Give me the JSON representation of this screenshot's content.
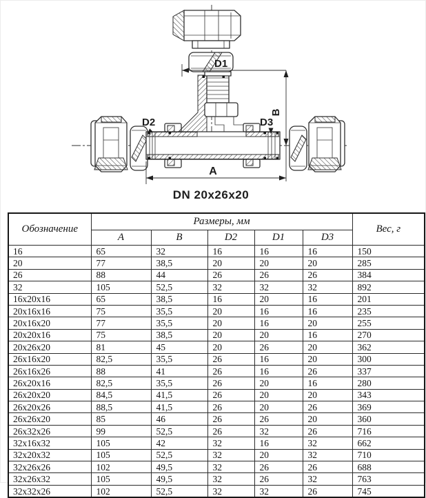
{
  "drawing": {
    "caption": "DN 20x26x20",
    "labels": {
      "d1": "D1",
      "d2": "D2",
      "d3": "D3",
      "a": "A",
      "b": "B"
    }
  },
  "table": {
    "header": {
      "designation": "Обозначение",
      "dimensions": "Размеры, мм",
      "weight": "Вес, г"
    },
    "sub_headers": {
      "a": "A",
      "b": "B",
      "d2": "D2",
      "d1": "D1",
      "d3": "D3"
    },
    "cell_order": [
      "designation",
      "a",
      "b",
      "d2",
      "d1",
      "d3",
      "weight"
    ],
    "rows": [
      {
        "designation": "16",
        "a": "65",
        "b": "32",
        "d2": "16",
        "d1": "16",
        "d3": "16",
        "weight": "150"
      },
      {
        "designation": "20",
        "a": "77",
        "b": "38,5",
        "d2": "20",
        "d1": "20",
        "d3": "20",
        "weight": "285"
      },
      {
        "designation": "26",
        "a": "88",
        "b": "44",
        "d2": "26",
        "d1": "26",
        "d3": "26",
        "weight": "384"
      },
      {
        "designation": "32",
        "a": "105",
        "b": "52,5",
        "d2": "32",
        "d1": "32",
        "d3": "32",
        "weight": "892"
      },
      {
        "designation": "16x20x16",
        "a": "65",
        "b": "38,5",
        "d2": "16",
        "d1": "20",
        "d3": "16",
        "weight": "201"
      },
      {
        "designation": "20x16x16",
        "a": "75",
        "b": "35,5",
        "d2": "20",
        "d1": "16",
        "d3": "16",
        "weight": "235"
      },
      {
        "designation": "20x16x20",
        "a": "77",
        "b": "35,5",
        "d2": "20",
        "d1": "16",
        "d3": "20",
        "weight": "255"
      },
      {
        "designation": "20x20x16",
        "a": "75",
        "b": "38,5",
        "d2": "20",
        "d1": "20",
        "d3": "16",
        "weight": "270"
      },
      {
        "designation": "20x26x20",
        "a": "81",
        "b": "45",
        "d2": "20",
        "d1": "26",
        "d3": "20",
        "weight": "362"
      },
      {
        "designation": "26x16x20",
        "a": "82,5",
        "b": "35,5",
        "d2": "26",
        "d1": "16",
        "d3": "20",
        "weight": "300"
      },
      {
        "designation": "26x16x26",
        "a": "88",
        "b": "41",
        "d2": "26",
        "d1": "16",
        "d3": "26",
        "weight": "337"
      },
      {
        "designation": "26x20x16",
        "a": "82,5",
        "b": "35,5",
        "d2": "26",
        "d1": "20",
        "d3": "16",
        "weight": "280"
      },
      {
        "designation": "26x20x20",
        "a": "84,5",
        "b": "41,5",
        "d2": "26",
        "d1": "20",
        "d3": "20",
        "weight": "343"
      },
      {
        "designation": "26x20x26",
        "a": "88,5",
        "b": "41,5",
        "d2": "26",
        "d1": "20",
        "d3": "26",
        "weight": "369"
      },
      {
        "designation": "26x26x20",
        "a": "85",
        "b": "46",
        "d2": "26",
        "d1": "26",
        "d3": "20",
        "weight": "360"
      },
      {
        "designation": "26x32x26",
        "a": "99",
        "b": "52,5",
        "d2": "26",
        "d1": "32",
        "d3": "26",
        "weight": "716"
      },
      {
        "designation": "32x16x32",
        "a": "105",
        "b": "42",
        "d2": "32",
        "d1": "16",
        "d3": "32",
        "weight": "662"
      },
      {
        "designation": "32x20x32",
        "a": "105",
        "b": "52,5",
        "d2": "32",
        "d1": "20",
        "d3": "32",
        "weight": "710"
      },
      {
        "designation": "32x26x26",
        "a": "102",
        "b": "49,5",
        "d2": "32",
        "d1": "26",
        "d3": "26",
        "weight": "688"
      },
      {
        "designation": "32x26x32",
        "a": "105",
        "b": "49,5",
        "d2": "32",
        "d1": "26",
        "d3": "32",
        "weight": "763"
      },
      {
        "designation": "32x32x26",
        "a": "102",
        "b": "52,5",
        "d2": "32",
        "d1": "32",
        "d3": "26",
        "weight": "745"
      }
    ]
  },
  "colors": {
    "ink": "#1b1b1b",
    "line": "#2e2e2e",
    "bg": "#ffffff"
  }
}
